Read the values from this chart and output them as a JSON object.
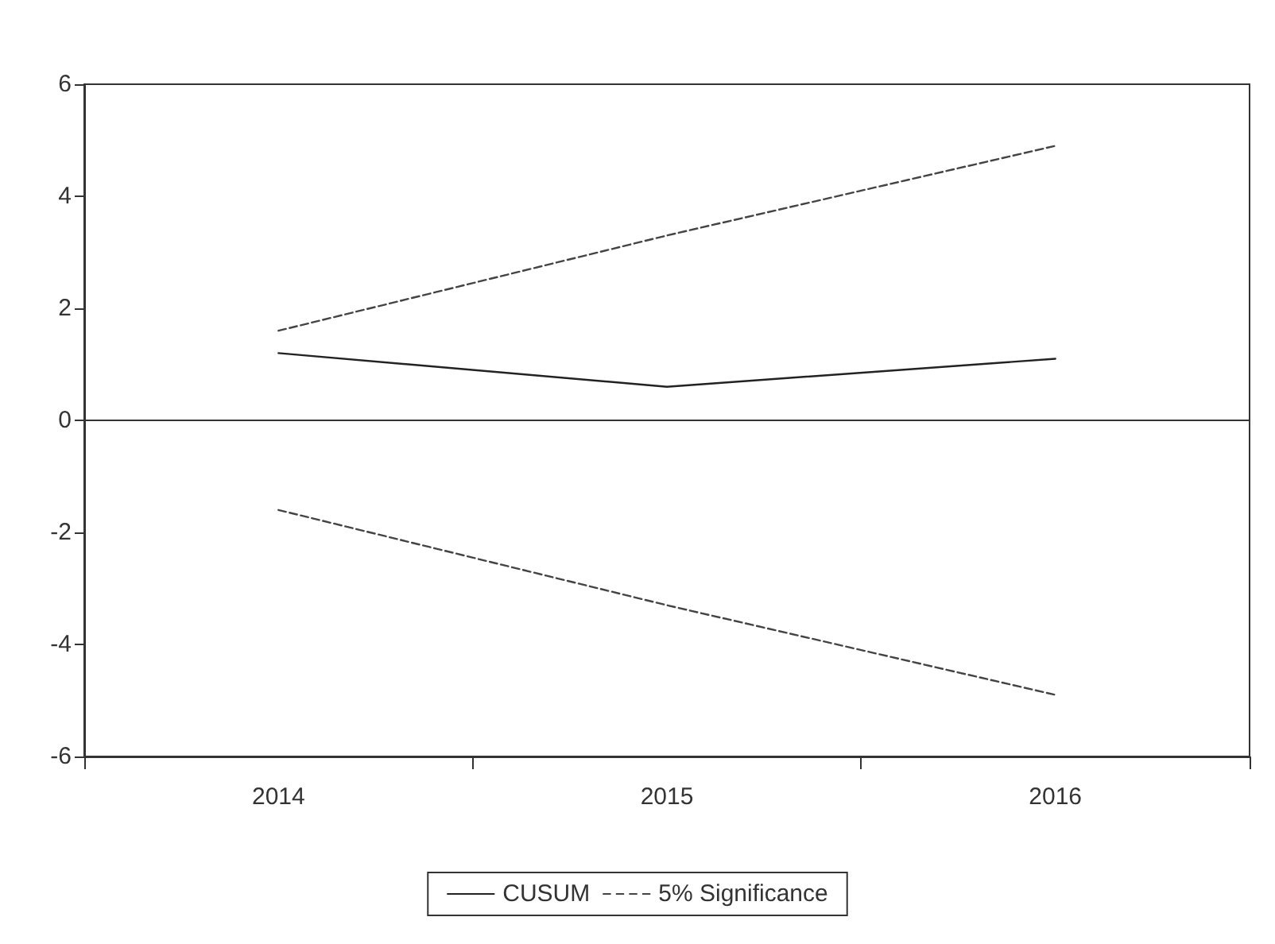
{
  "chart_data": {
    "type": "line",
    "categories": [
      "2014",
      "2015",
      "2016"
    ],
    "series": [
      {
        "name": "CUSUM",
        "color": "#222222",
        "values": [
          1.2,
          0.6,
          1.1
        ],
        "line_style": "solid"
      },
      {
        "name": "5% Significance",
        "color": "#444444",
        "values": [
          1.6,
          3.3,
          4.9
        ],
        "line_style": "dashed"
      },
      {
        "color": "#444444",
        "values": [
          -1.6,
          -3.3,
          -4.9
        ],
        "line_style": "dashed"
      }
    ],
    "ylim": [
      -6,
      6
    ],
    "yticks": [
      -6,
      -4,
      -2,
      0,
      2,
      4,
      6
    ],
    "ref_lines": [
      {
        "axis": "y",
        "value": 0,
        "color": "#333333"
      }
    ],
    "grid": false,
    "legend": "bottom",
    "marker": "none"
  }
}
